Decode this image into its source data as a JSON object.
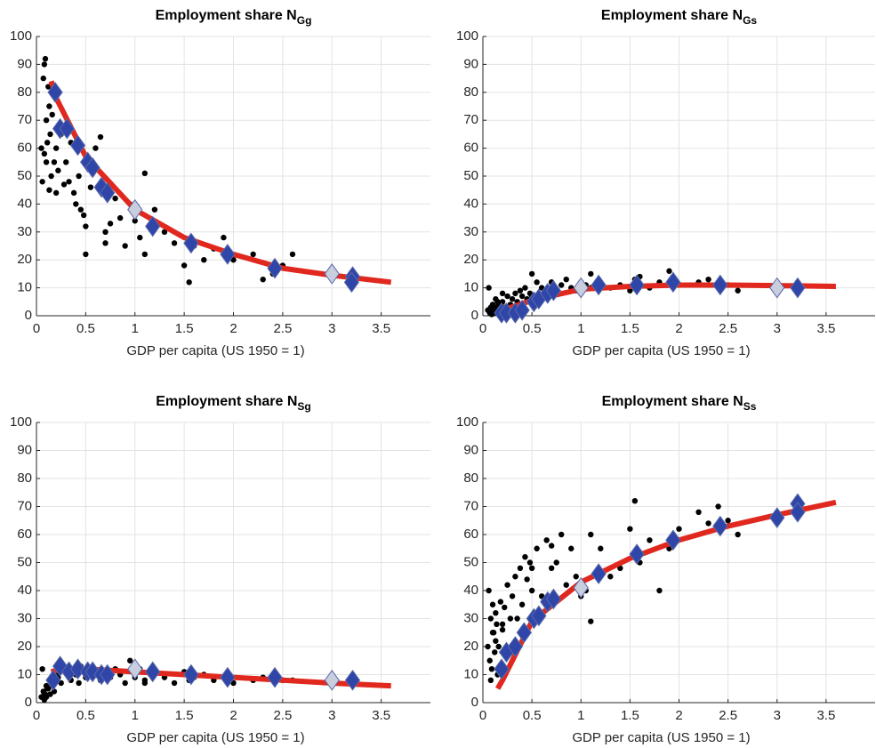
{
  "chart_data": [
    {
      "type": "scatter",
      "title": "Employment share N",
      "title_subscript": "Gg",
      "xlabel": "GDP per capita (US 1950 = 1)",
      "xlim": [
        0,
        4
      ],
      "ylim": [
        0,
        100
      ],
      "xticks": [
        0,
        0.5,
        1,
        1.5,
        2,
        2.5,
        3,
        3.5
      ],
      "yticks": [
        0,
        10,
        20,
        30,
        40,
        50,
        60,
        70,
        80,
        90,
        100
      ],
      "grid": true,
      "series": [
        {
          "marker": "dot",
          "color": "#000000",
          "x": [
            0.05,
            0.07,
            0.08,
            0.09,
            0.1,
            0.1,
            0.12,
            0.13,
            0.14,
            0.15,
            0.06,
            0.08,
            0.11,
            0.13,
            0.16,
            0.18,
            0.2,
            0.22,
            0.25,
            0.28,
            0.3,
            0.33,
            0.35,
            0.38,
            0.4,
            0.43,
            0.45,
            0.48,
            0.5,
            0.55,
            0.6,
            0.65,
            0.7,
            0.75,
            0.8,
            0.85,
            0.9,
            0.95,
            1.0,
            1.05,
            1.1,
            1.2,
            1.3,
            1.4,
            1.5,
            1.55,
            1.6,
            1.7,
            1.8,
            1.9,
            2.0,
            2.2,
            2.3,
            2.4,
            2.5,
            2.6,
            0.5,
            0.7,
            1.1,
            0.2
          ],
          "y": [
            60,
            85,
            90,
            92,
            70,
            55,
            82,
            75,
            65,
            50,
            48,
            58,
            62,
            45,
            72,
            55,
            60,
            52,
            65,
            47,
            55,
            48,
            62,
            44,
            40,
            50,
            38,
            36,
            22,
            46,
            60,
            64,
            30,
            33,
            42,
            35,
            25,
            40,
            34,
            28,
            51,
            38,
            30,
            26,
            18,
            12,
            25,
            20,
            24,
            28,
            20,
            22,
            13,
            15,
            18,
            22,
            32,
            26,
            22,
            44
          ]
        },
        {
          "marker": "line",
          "color": "#e0281e",
          "x": [
            0.15,
            0.2,
            0.5,
            1,
            1.5,
            2,
            2.5,
            3,
            3.6
          ],
          "y": [
            84,
            78,
            57,
            38,
            28,
            22,
            17,
            14.5,
            12
          ]
        },
        {
          "marker": "diamond",
          "color": "#2f46a8",
          "x": [
            0.19,
            0.24,
            0.31,
            0.42,
            0.52,
            0.57,
            0.66,
            0.72,
            1.18,
            1.57,
            1.94,
            2.42,
            3.21,
            3.2
          ],
          "y": [
            80,
            67,
            67,
            61,
            55,
            53,
            46,
            44,
            32,
            26,
            22,
            17,
            14,
            12
          ]
        },
        {
          "marker": "diamond",
          "color": "#c9cedf",
          "x": [
            1.0,
            3.0
          ],
          "y": [
            38,
            15
          ]
        }
      ]
    },
    {
      "type": "scatter",
      "title": "Employment share N",
      "title_subscript": "Gs",
      "xlabel": "GDP per capita (US 1950 = 1)",
      "xlim": [
        0,
        4
      ],
      "ylim": [
        0,
        100
      ],
      "xticks": [
        0,
        0.5,
        1,
        1.5,
        2,
        2.5,
        3,
        3.5
      ],
      "yticks": [
        0,
        10,
        20,
        30,
        40,
        50,
        60,
        70,
        80,
        90,
        100
      ],
      "grid": true,
      "series": [
        {
          "marker": "dot",
          "color": "#000000",
          "x": [
            0.05,
            0.07,
            0.08,
            0.09,
            0.1,
            0.1,
            0.12,
            0.13,
            0.14,
            0.15,
            0.06,
            0.08,
            0.11,
            0.13,
            0.16,
            0.18,
            0.2,
            0.22,
            0.25,
            0.28,
            0.3,
            0.33,
            0.35,
            0.38,
            0.4,
            0.43,
            0.45,
            0.48,
            0.5,
            0.55,
            0.6,
            0.65,
            0.7,
            0.75,
            0.8,
            0.85,
            0.9,
            0.95,
            1.0,
            1.05,
            1.1,
            1.2,
            1.3,
            1.4,
            1.5,
            1.55,
            1.6,
            1.7,
            1.8,
            1.9,
            2.0,
            2.2,
            2.3,
            2.4,
            2.5,
            2.6,
            0.5,
            0.7,
            1.1,
            0.2
          ],
          "y": [
            2,
            1,
            3,
            0.5,
            2,
            4,
            1,
            3,
            2,
            5,
            10,
            1,
            3,
            6,
            4,
            2,
            5,
            3,
            7,
            4,
            6,
            8,
            5,
            9,
            7,
            10,
            6,
            8,
            15,
            12,
            10,
            8,
            12,
            9,
            11,
            13,
            10,
            9,
            12,
            11,
            15,
            12,
            10,
            11,
            9,
            13,
            14,
            10,
            12,
            16,
            11,
            12,
            13,
            10,
            11,
            9,
            7,
            12,
            10,
            8
          ]
        },
        {
          "marker": "line",
          "color": "#e0281e",
          "x": [
            0.15,
            0.2,
            0.5,
            1,
            1.5,
            2,
            2.5,
            3,
            3.6
          ],
          "y": [
            1,
            2,
            5.5,
            9.5,
            10.5,
            11,
            11,
            10.8,
            10.5
          ]
        },
        {
          "marker": "diamond",
          "color": "#2f46a8",
          "x": [
            0.19,
            0.24,
            0.33,
            0.4,
            0.52,
            0.57,
            0.66,
            0.72,
            1.18,
            1.57,
            1.94,
            2.42,
            3.21
          ],
          "y": [
            1,
            1,
            1,
            2,
            5,
            6,
            8,
            9,
            11,
            11,
            12,
            11,
            10
          ]
        },
        {
          "marker": "diamond",
          "color": "#c9cedf",
          "x": [
            1.0,
            3.0
          ],
          "y": [
            10,
            10
          ]
        }
      ]
    },
    {
      "type": "scatter",
      "title": "Employment share N",
      "title_subscript": "Sg",
      "xlabel": "GDP per capita (US 1950 = 1)",
      "xlim": [
        0,
        4
      ],
      "ylim": [
        0,
        100
      ],
      "xticks": [
        0,
        0.5,
        1,
        1.5,
        2,
        2.5,
        3,
        3.5
      ],
      "yticks": [
        0,
        10,
        20,
        30,
        40,
        50,
        60,
        70,
        80,
        90,
        100
      ],
      "grid": true,
      "series": [
        {
          "marker": "dot",
          "color": "#000000",
          "x": [
            0.05,
            0.07,
            0.08,
            0.09,
            0.1,
            0.1,
            0.12,
            0.13,
            0.14,
            0.15,
            0.06,
            0.08,
            0.11,
            0.13,
            0.16,
            0.18,
            0.2,
            0.22,
            0.25,
            0.28,
            0.3,
            0.33,
            0.35,
            0.38,
            0.4,
            0.43,
            0.45,
            0.48,
            0.5,
            0.55,
            0.6,
            0.65,
            0.7,
            0.75,
            0.8,
            0.85,
            0.9,
            0.95,
            1.0,
            1.05,
            1.1,
            1.2,
            1.3,
            1.4,
            1.5,
            1.55,
            1.6,
            1.7,
            1.8,
            1.9,
            2.0,
            2.2,
            2.3,
            2.4,
            2.5,
            2.6,
            0.5,
            0.7,
            1.1,
            0.2
          ],
          "y": [
            2,
            4,
            1,
            3,
            6,
            2,
            5,
            8,
            3,
            7,
            12,
            3,
            5,
            8,
            6,
            4,
            10,
            9,
            7,
            13,
            11,
            9,
            8,
            12,
            10,
            7,
            13,
            11,
            9,
            12,
            10,
            8,
            11,
            9,
            12,
            10,
            7,
            15,
            9,
            12,
            8,
            10,
            9,
            7,
            11,
            8,
            9,
            10,
            8,
            9,
            7,
            8,
            9,
            10,
            8,
            8,
            12,
            9,
            7,
            11
          ]
        },
        {
          "marker": "line",
          "color": "#e0281e",
          "x": [
            0.15,
            0.2,
            0.5,
            1,
            1.5,
            2,
            2.5,
            3,
            3.6
          ],
          "y": [
            11,
            11.5,
            12,
            11,
            10,
            9,
            8,
            7,
            6
          ]
        },
        {
          "marker": "diamond",
          "color": "#2f46a8",
          "x": [
            0.17,
            0.24,
            0.33,
            0.42,
            0.52,
            0.57,
            0.66,
            0.72,
            1.18,
            1.57,
            1.94,
            2.42,
            3.21
          ],
          "y": [
            8,
            13,
            11,
            12,
            11,
            11,
            10,
            10,
            11,
            10,
            9,
            9,
            8
          ]
        },
        {
          "marker": "diamond",
          "color": "#c9cedf",
          "x": [
            1.0,
            3.0
          ],
          "y": [
            12,
            8
          ]
        }
      ]
    },
    {
      "type": "scatter",
      "title": "Employment share N",
      "title_subscript": "Ss",
      "xlabel": "GDP per capita (US 1950 = 1)",
      "xlim": [
        0,
        4
      ],
      "ylim": [
        0,
        100
      ],
      "xticks": [
        0,
        0.5,
        1,
        1.5,
        2,
        2.5,
        3,
        3.5
      ],
      "yticks": [
        0,
        10,
        20,
        30,
        40,
        50,
        60,
        70,
        80,
        90,
        100
      ],
      "grid": true,
      "series": [
        {
          "marker": "dot",
          "color": "#000000",
          "x": [
            0.05,
            0.07,
            0.08,
            0.09,
            0.1,
            0.1,
            0.12,
            0.13,
            0.14,
            0.15,
            0.06,
            0.08,
            0.11,
            0.13,
            0.16,
            0.18,
            0.2,
            0.22,
            0.25,
            0.28,
            0.3,
            0.33,
            0.35,
            0.38,
            0.4,
            0.43,
            0.45,
            0.48,
            0.5,
            0.55,
            0.6,
            0.65,
            0.7,
            0.75,
            0.8,
            0.85,
            0.9,
            0.95,
            1.0,
            1.05,
            1.1,
            1.2,
            1.3,
            1.4,
            1.5,
            1.55,
            1.6,
            1.7,
            1.8,
            1.9,
            2.0,
            2.2,
            2.3,
            2.4,
            2.5,
            2.6,
            0.5,
            0.7,
            1.1,
            0.2
          ],
          "y": [
            20,
            15,
            30,
            12,
            25,
            35,
            18,
            22,
            28,
            10,
            40,
            8,
            25,
            32,
            20,
            36,
            28,
            34,
            42,
            30,
            38,
            45,
            30,
            48,
            35,
            52,
            44,
            50,
            40,
            55,
            38,
            58,
            48,
            50,
            60,
            42,
            55,
            45,
            38,
            40,
            60,
            55,
            45,
            48,
            62,
            72,
            50,
            58,
            40,
            55,
            62,
            68,
            64,
            70,
            65,
            60,
            48,
            56,
            29,
            26
          ]
        },
        {
          "marker": "line",
          "color": "#e0281e",
          "x": [
            0.15,
            0.2,
            0.5,
            1,
            1.5,
            2,
            2.5,
            3,
            3.6
          ],
          "y": [
            5,
            8,
            29,
            43,
            51.5,
            58,
            63,
            67,
            71.5
          ]
        },
        {
          "marker": "diamond",
          "color": "#2f46a8",
          "x": [
            0.19,
            0.24,
            0.33,
            0.42,
            0.52,
            0.57,
            0.66,
            0.72,
            1.18,
            1.57,
            1.94,
            2.42,
            3.0,
            3.21,
            3.21
          ],
          "y": [
            12,
            18,
            20,
            25,
            30,
            31,
            36,
            37,
            46,
            53,
            58,
            63,
            66,
            71,
            68
          ]
        },
        {
          "marker": "diamond",
          "color": "#c9cedf",
          "x": [
            1.0
          ],
          "y": [
            41
          ]
        }
      ]
    }
  ]
}
